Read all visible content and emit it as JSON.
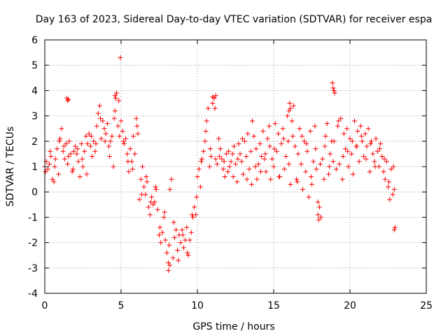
{
  "chart_data": {
    "type": "scatter",
    "title": "Day 163 of 2023, Sidereal Day-to-day VTEC variation (SDTVAR) for receiver espa",
    "xlabel": "GPS time / hours",
    "ylabel": "SDTVAR / TECUs",
    "xlim": [
      0,
      25
    ],
    "ylim": [
      -4,
      6
    ],
    "xticks": [
      0,
      5,
      10,
      15,
      20,
      25
    ],
    "xtick_labels": [
      "0",
      "5",
      "10",
      "15",
      "20",
      "25"
    ],
    "yticks": [
      -4,
      -3,
      -2,
      -1,
      0,
      1,
      2,
      3,
      4,
      5,
      6
    ],
    "ytick_labels": [
      "-4",
      "-3",
      "-2",
      "-1",
      "0",
      "1",
      "2",
      "3",
      "4",
      "5",
      "6"
    ],
    "grid": true,
    "marker": "plus",
    "series": [
      {
        "name": "SDTVAR",
        "color": "#ff0000",
        "x": [
          0.0,
          0.1,
          0.2,
          0.3,
          0.4,
          0.5,
          0.6,
          0.7,
          0.8,
          0.9,
          1.0,
          1.1,
          1.2,
          1.3,
          1.4,
          1.5,
          1.6,
          1.7,
          1.8,
          1.9,
          2.0,
          2.1,
          2.2,
          2.3,
          2.4,
          2.5,
          2.6,
          2.7,
          2.8,
          2.9,
          3.0,
          3.1,
          3.2,
          3.3,
          3.4,
          3.5,
          3.6,
          3.7,
          3.8,
          3.9,
          4.0,
          4.1,
          4.2,
          4.3,
          4.4,
          4.5,
          4.6,
          4.7,
          4.8,
          4.9,
          5.0,
          5.1,
          5.2,
          5.3,
          5.4,
          5.5,
          5.6,
          5.7,
          5.8,
          5.9,
          6.0,
          6.1,
          6.2,
          6.3,
          6.4,
          6.5,
          6.6,
          6.7,
          6.8,
          6.9,
          7.0,
          7.1,
          7.2,
          7.3,
          7.4,
          7.5,
          7.6,
          7.7,
          7.8,
          7.9,
          8.0,
          8.1,
          8.2,
          8.3,
          8.4,
          8.5,
          8.6,
          8.7,
          8.8,
          8.9,
          9.0,
          9.1,
          9.2,
          9.3,
          9.4,
          9.5,
          9.6,
          9.7,
          9.8,
          9.9,
          10.0,
          10.1,
          10.2,
          10.3,
          10.4,
          10.5,
          10.6,
          10.7,
          10.8,
          10.9,
          11.0,
          11.1,
          11.2,
          11.3,
          11.4,
          11.5,
          11.6,
          11.7,
          11.8,
          11.9,
          12.0,
          12.1,
          12.2,
          12.3,
          12.4,
          12.5,
          12.6,
          12.7,
          12.8,
          12.9,
          13.0,
          13.1,
          13.2,
          13.3,
          13.4,
          13.5,
          13.6,
          13.7,
          13.8,
          13.9,
          14.0,
          14.1,
          14.2,
          14.3,
          14.4,
          14.5,
          14.6,
          14.7,
          14.8,
          14.9,
          15.0,
          15.1,
          15.2,
          15.3,
          15.4,
          15.5,
          15.6,
          15.7,
          15.8,
          15.9,
          16.0,
          16.1,
          16.2,
          16.3,
          16.4,
          16.5,
          16.6,
          16.7,
          16.8,
          16.9,
          17.0,
          17.1,
          17.2,
          17.3,
          17.4,
          17.5,
          17.6,
          17.7,
          17.8,
          17.9,
          18.0,
          18.1,
          18.2,
          18.3,
          18.4,
          18.5,
          18.6,
          18.7,
          18.8,
          18.9,
          19.0,
          19.1,
          19.2,
          19.3,
          19.4,
          19.5,
          19.6,
          19.7,
          19.8,
          19.9,
          20.0,
          20.1,
          20.2,
          20.3,
          20.4,
          20.5,
          20.6,
          20.7,
          20.8,
          20.9,
          21.0,
          21.1,
          21.2,
          21.3,
          21.4,
          21.5,
          21.6,
          21.7,
          21.8,
          21.9,
          22.0,
          22.1,
          22.2,
          22.3,
          22.4,
          22.5,
          22.6,
          22.7,
          22.8,
          22.9,
          0.05,
          0.35,
          0.65,
          0.95,
          1.25,
          1.55,
          1.85,
          2.15,
          2.45,
          2.75,
          3.05,
          3.35,
          3.65,
          3.95,
          4.25,
          4.55,
          4.85,
          5.15,
          5.45,
          5.75,
          6.05,
          6.35,
          6.65,
          6.95,
          7.25,
          7.55,
          7.85,
          8.15,
          8.45,
          8.75,
          9.05,
          9.35,
          9.65,
          9.95,
          10.25,
          10.55,
          10.85,
          11.15,
          11.45,
          11.75,
          12.05,
          12.35,
          12.65,
          12.95,
          13.25,
          13.55,
          13.85,
          14.15,
          14.45,
          14.75,
          15.05,
          15.35,
          15.65,
          15.95,
          16.25,
          16.55,
          16.85,
          17.15,
          17.45,
          17.75,
          18.05,
          18.35,
          18.65,
          18.95,
          19.25,
          19.55,
          19.85,
          20.15,
          20.45,
          20.75,
          21.05,
          21.35,
          21.65,
          21.95,
          22.25,
          22.55,
          22.85,
          1.45,
          1.5,
          1.55,
          4.95,
          18.85,
          18.9,
          18.95,
          11.0,
          11.1,
          11.2,
          8.1,
          8.2,
          22.9,
          22.95,
          17.9,
          17.95,
          16.0,
          16.05,
          16.1,
          4.6,
          4.65,
          4.7
        ],
        "y": [
          1.0,
          1.2,
          0.9,
          1.1,
          1.4,
          0.5,
          0.4,
          1.3,
          1.7,
          0.7,
          2.1,
          2.5,
          1.6,
          1.3,
          1.9,
          1.1,
          2.0,
          1.5,
          0.8,
          1.6,
          1.8,
          1.5,
          1.2,
          0.6,
          1.9,
          1.0,
          1.6,
          2.2,
          1.9,
          2.3,
          1.8,
          1.4,
          2.0,
          1.6,
          2.6,
          3.1,
          3.4,
          2.1,
          2.8,
          2.5,
          2.3,
          2.7,
          1.8,
          2.0,
          2.2,
          1.0,
          3.2,
          3.9,
          2.6,
          2.2,
          2.8,
          2.4,
          1.9,
          2.1,
          1.5,
          0.8,
          1.7,
          1.2,
          2.2,
          1.5,
          2.9,
          2.3,
          -0.3,
          0.5,
          1.0,
          0.2,
          -0.1,
          0.4,
          -0.6,
          -0.9,
          -0.2,
          -0.5,
          -0.4,
          0.1,
          -0.7,
          -1.7,
          -2.0,
          -1.6,
          -1.0,
          -1.9,
          -2.4,
          -2.8,
          0.1,
          0.5,
          -2.6,
          -1.8,
          -1.5,
          -2.3,
          -1.7,
          -2.0,
          -1.5,
          -2.2,
          -1.9,
          -1.4,
          -2.5,
          -1.9,
          -1.6,
          -1.0,
          -0.6,
          -0.9,
          0.6,
          0.9,
          0.2,
          1.3,
          1.6,
          2.0,
          2.8,
          3.3,
          1.0,
          1.4,
          3.5,
          3.7,
          1.3,
          1.1,
          2.1,
          1.7,
          1.3,
          0.9,
          0.6,
          1.5,
          0.8,
          1.0,
          1.2,
          1.5,
          1.8,
          1.1,
          0.4,
          1.9,
          1.5,
          1.2,
          0.7,
          2.0,
          1.4,
          2.3,
          0.9,
          1.6,
          2.8,
          2.2,
          1.0,
          0.5,
          1.1,
          1.9,
          1.4,
          2.4,
          1.3,
          0.8,
          2.1,
          2.6,
          0.5,
          1.3,
          1.0,
          2.7,
          1.6,
          2.3,
          0.6,
          1.9,
          2.5,
          0.9,
          1.4,
          3.0,
          1.1,
          0.3,
          2.8,
          3.4,
          1.8,
          0.5,
          1.5,
          2.5,
          1.1,
          0.1,
          2.0,
          0.8,
          1.6,
          -0.2,
          2.4,
          0.3,
          1.2,
          2.6,
          0.9,
          -0.4,
          -0.6,
          -1.0,
          1.3,
          0.5,
          2.2,
          2.7,
          0.7,
          1.5,
          2.0,
          1.2,
          3.9,
          0.9,
          2.6,
          1.1,
          2.9,
          0.5,
          2.3,
          1.7,
          2.5,
          1.0,
          2.1,
          1.5,
          0.7,
          2.8,
          1.8,
          2.4,
          1.2,
          2.6,
          2.0,
          1.4,
          2.3,
          1.8,
          2.5,
          0.8,
          2.0,
          1.5,
          1.2,
          2.1,
          1.6,
          1.0,
          1.9,
          1.4,
          0.8,
          0.5,
          1.2,
          0.2,
          -0.3,
          0.9,
          -0.1,
          0.1,
          0.8,
          1.6,
          1.0,
          2.0,
          1.8,
          1.4,
          0.9,
          1.7,
          1.3,
          0.7,
          2.2,
          1.9,
          2.9,
          2.0,
          1.4,
          2.9,
          3.6,
          2.0,
          1.2,
          0.9,
          2.6,
          -0.1,
          0.6,
          -0.4,
          0.2,
          -1.4,
          -0.8,
          -2.1,
          -1.2,
          -2.7,
          -1.7,
          -2.4,
          -0.9,
          -0.2,
          1.2,
          2.4,
          1.7,
          3.3,
          1.4,
          1.2,
          1.6,
          0.6,
          1.3,
          2.1,
          0.5,
          0.3,
          1.7,
          0.8,
          1.5,
          1.8,
          1.7,
          0.6,
          2.1,
          2.0,
          2.2,
          0.4,
          2.2,
          1.9,
          0.6,
          1.7,
          1.1,
          1.8,
          1.0,
          2.0,
          2.8,
          1.4,
          1.6,
          2.0,
          1.8,
          2.2,
          1.3,
          1.9,
          1.0,
          1.7,
          1.3,
          0.4,
          1.0,
          3.7,
          3.6,
          3.65,
          5.3,
          4.3,
          4.1,
          4.0,
          3.75,
          3.7,
          3.8,
          -3.1,
          -2.9,
          -1.5,
          -1.4,
          -0.9,
          -1.1,
          3.2,
          3.5,
          3.3,
          3.8,
          3.7,
          3.9
        ]
      }
    ]
  }
}
